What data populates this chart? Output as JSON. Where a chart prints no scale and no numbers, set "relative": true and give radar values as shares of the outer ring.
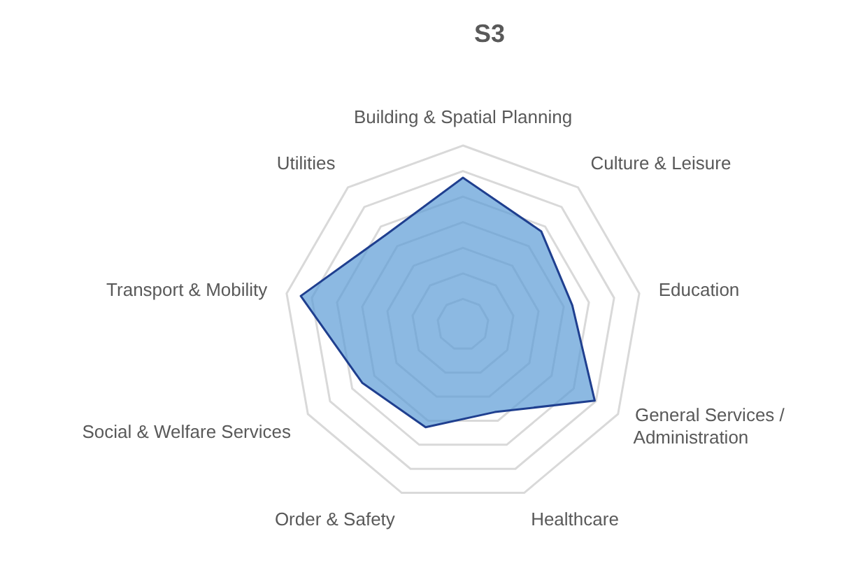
{
  "chart_data": {
    "type": "radar",
    "title": "S3",
    "relative": true,
    "grid": true,
    "categories": [
      "Building & Spatial Planning",
      "Culture & Leisure",
      "Education",
      "General Services / Administration",
      "Healthcare",
      "Order & Safety",
      "Social & Welfare Services",
      "Transport & Mobility",
      "Utilities"
    ],
    "series": [
      {
        "color": "#1f3f8f",
        "values": [
          0.82,
          0.68,
          0.62,
          0.85,
          0.52,
          0.61,
          0.65,
          0.92,
          0.66
        ]
      }
    ]
  }
}
